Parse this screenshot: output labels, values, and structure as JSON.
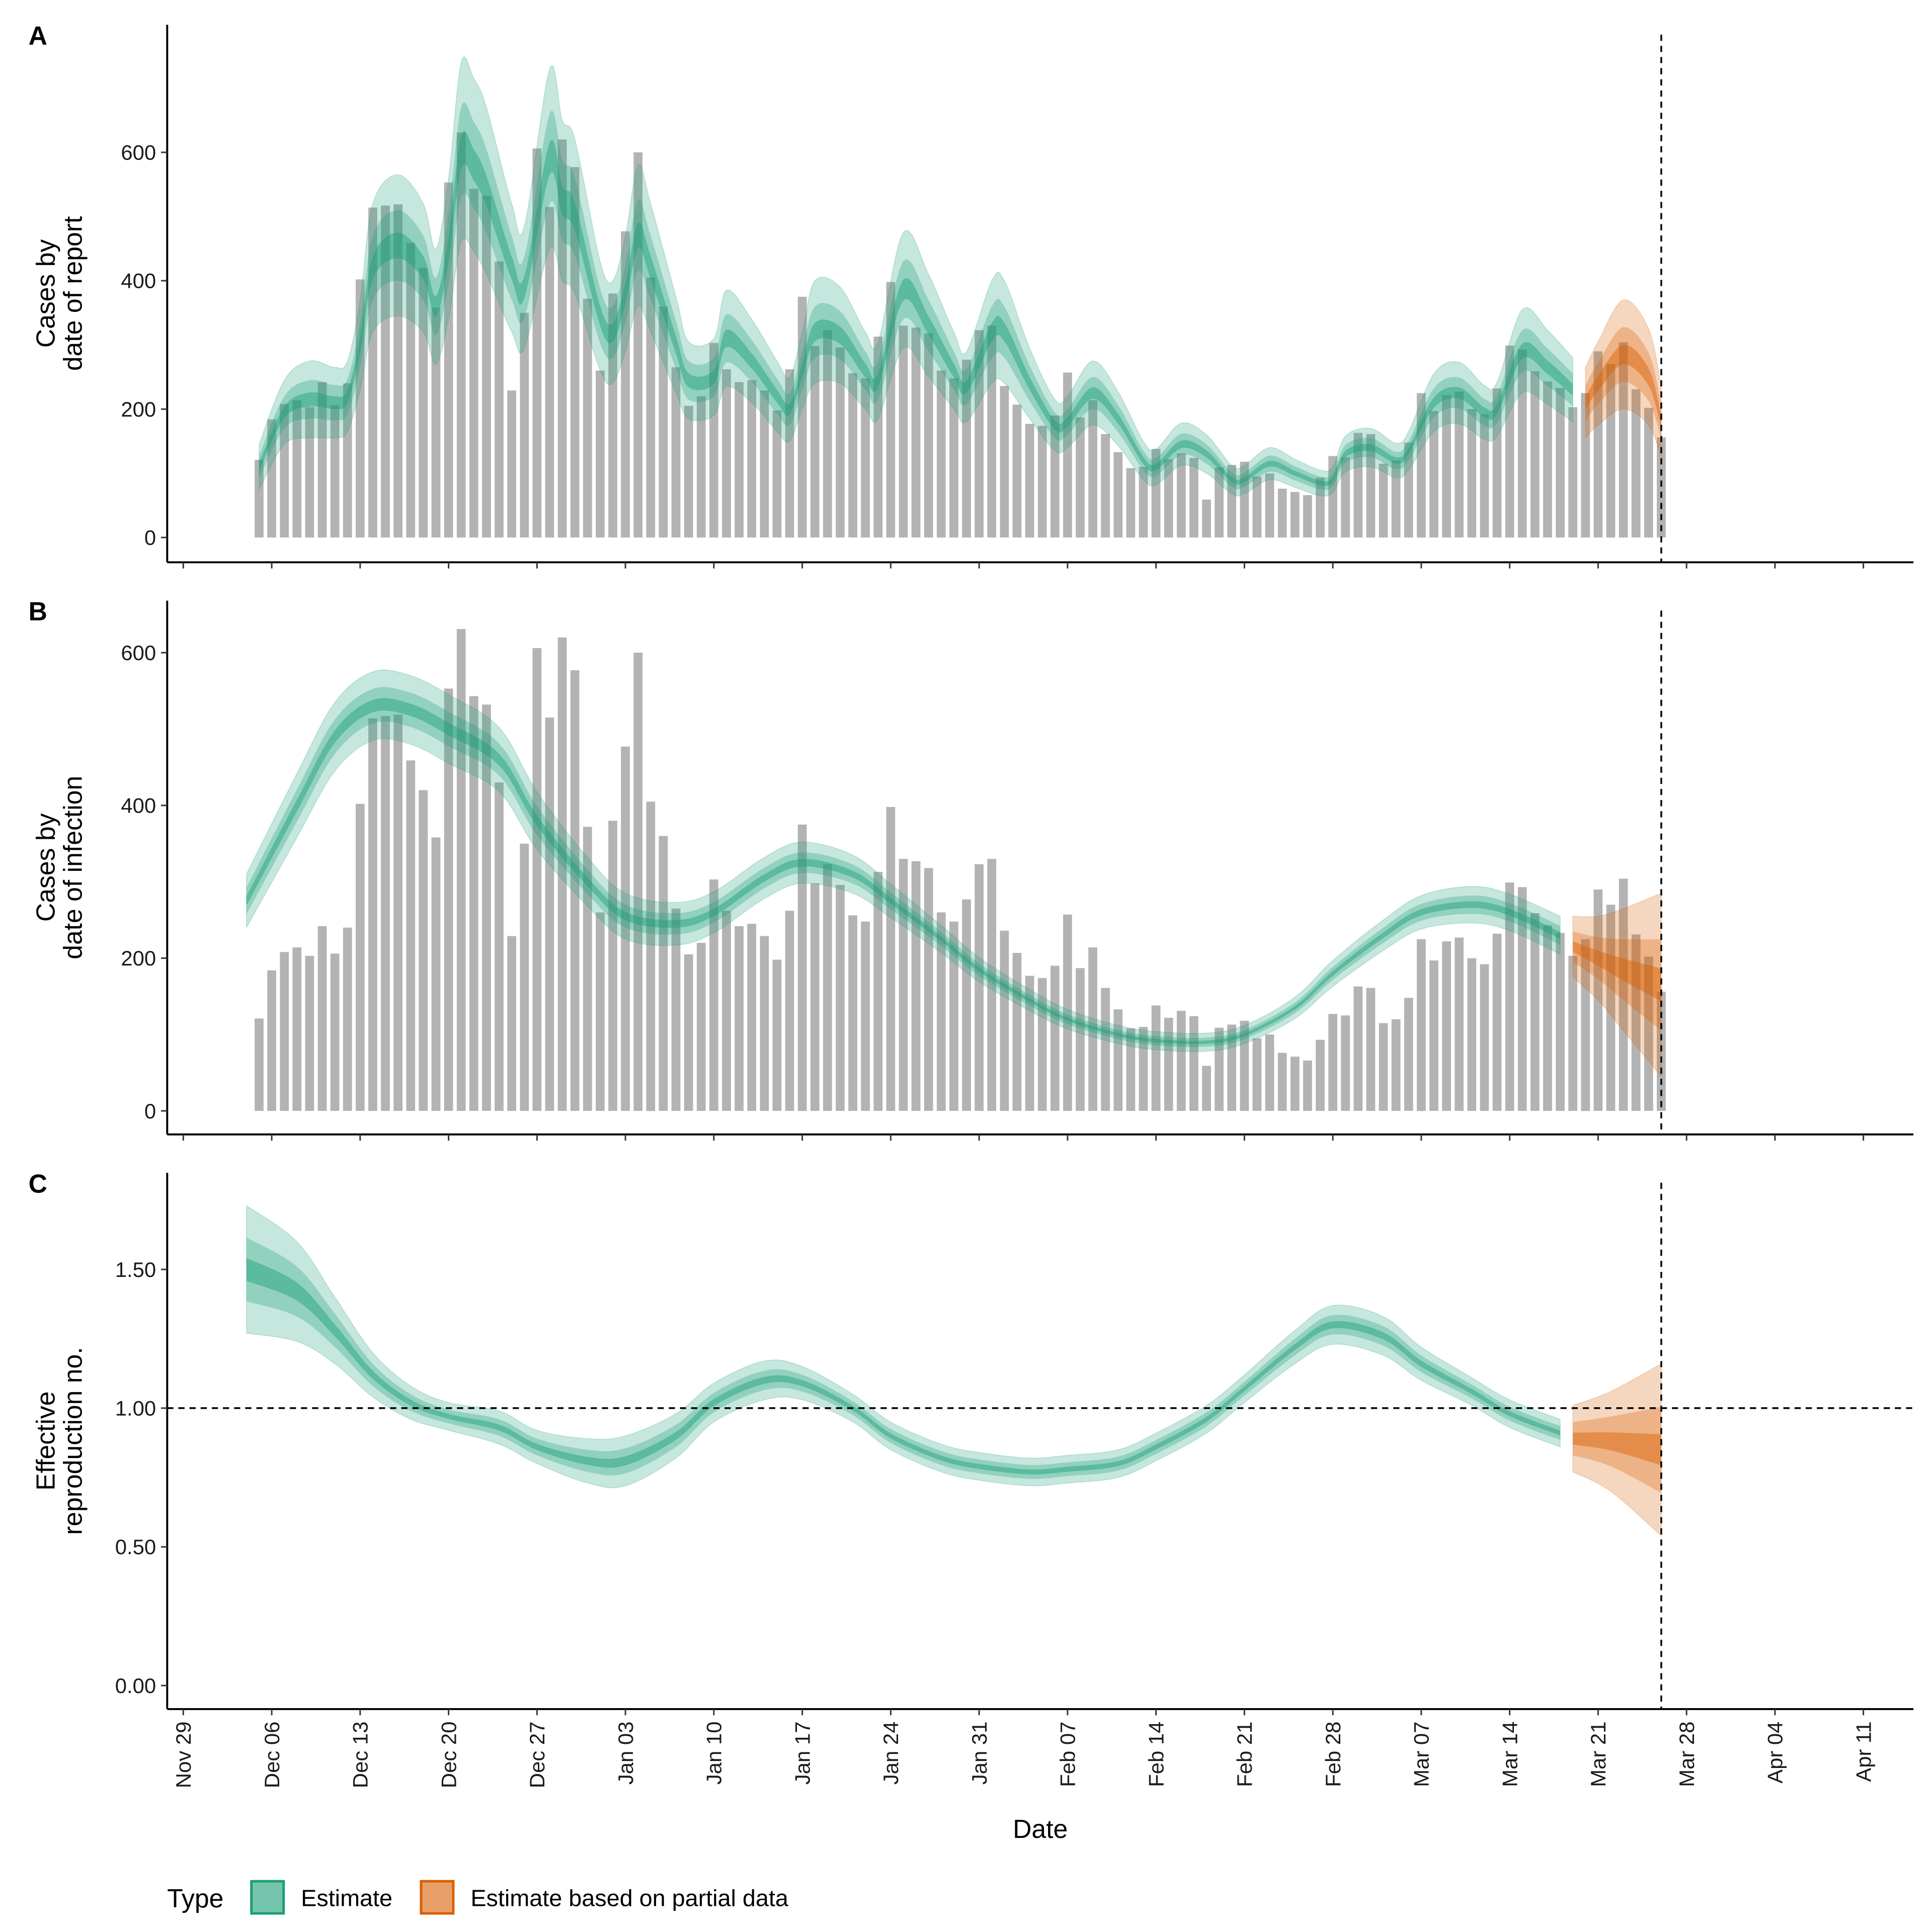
{
  "chart_data": [
    {
      "panel": "A",
      "type": "bar",
      "ylabel_lines": [
        "Cases by",
        "date of report"
      ],
      "ylim": [
        0,
        790
      ],
      "yticks": [
        0,
        200,
        400,
        600
      ],
      "bars": {
        "start_date": "Dec 05",
        "values": [
          121,
          184,
          208,
          214,
          203,
          242,
          206,
          240,
          402,
          514,
          517,
          519,
          459,
          420,
          358,
          553,
          631,
          543,
          532,
          430,
          229,
          350,
          606,
          515,
          620,
          577,
          372,
          260,
          380,
          477,
          600,
          405,
          360,
          265,
          205,
          220,
          303,
          262,
          242,
          245,
          229,
          198,
          262,
          375,
          298,
          323,
          296,
          256,
          248,
          313,
          398,
          330,
          327,
          318,
          260,
          248,
          277,
          323,
          330,
          236,
          207,
          177,
          174,
          190,
          257,
          187,
          214,
          161,
          133,
          108,
          110,
          138,
          122,
          131,
          124,
          59,
          109,
          113,
          118,
          95,
          100,
          76,
          71,
          66,
          93,
          127,
          125,
          163,
          161,
          115,
          120,
          148,
          225,
          197,
          222,
          227,
          200,
          192,
          232,
          299,
          293,
          259,
          243,
          233,
          203,
          225,
          290,
          270,
          304,
          231,
          202,
          156
        ]
      },
      "series": [
        {
          "name": "Estimate",
          "points": [
            [
              "Dec 05",
              110,
              35
            ],
            [
              "Dec 07",
              195,
              50
            ],
            [
              "Dec 09",
              215,
              60
            ],
            [
              "Dec 11",
              210,
              55
            ],
            [
              "Dec 12",
              220,
              55
            ],
            [
              "Dec 13",
              300,
              70
            ],
            [
              "Dec 14",
              420,
              100
            ],
            [
              "Dec 16",
              455,
              110
            ],
            [
              "Dec 18",
              420,
              100
            ],
            [
              "Dec 19",
              360,
              90
            ],
            [
              "Dec 20",
              450,
              110
            ],
            [
              "Dec 21",
              600,
              140
            ],
            [
              "Dec 22",
              580,
              135
            ],
            [
              "Dec 23",
              540,
              130
            ],
            [
              "Dec 25",
              420,
              100
            ],
            [
              "Dec 26",
              390,
              95
            ],
            [
              "Dec 28",
              590,
              140
            ],
            [
              "Dec 29",
              525,
              125
            ],
            [
              "Dec 30",
              500,
              120
            ],
            [
              "Jan 01",
              345,
              85
            ],
            [
              "Jan 02",
              320,
              80
            ],
            [
              "Jan 03",
              380,
              90
            ],
            [
              "Jan 04",
              470,
              110
            ],
            [
              "Jan 05",
              420,
              100
            ],
            [
              "Jan 07",
              300,
              75
            ],
            [
              "Jan 08",
              245,
              60
            ],
            [
              "Jan 10",
              250,
              60
            ],
            [
              "Jan 11",
              310,
              75
            ],
            [
              "Jan 13",
              275,
              65
            ],
            [
              "Jan 15",
              220,
              55
            ],
            [
              "Jan 16",
              200,
              50
            ],
            [
              "Jan 17",
              260,
              60
            ],
            [
              "Jan 18",
              320,
              80
            ],
            [
              "Jan 20",
              315,
              75
            ],
            [
              "Jan 22",
              260,
              60
            ],
            [
              "Jan 23",
              245,
              60
            ],
            [
              "Jan 25",
              385,
              90
            ],
            [
              "Jan 27",
              330,
              80
            ],
            [
              "Jan 29",
              260,
              60
            ],
            [
              "Jan 30",
              235,
              55
            ],
            [
              "Feb 01",
              320,
              80
            ],
            [
              "Feb 02",
              320,
              80
            ],
            [
              "Feb 04",
              240,
              55
            ],
            [
              "Feb 06",
              175,
              40
            ],
            [
              "Feb 07",
              180,
              40
            ],
            [
              "Feb 09",
              225,
              50
            ],
            [
              "Feb 11",
              185,
              42
            ],
            [
              "Feb 13",
              120,
              30
            ],
            [
              "Feb 14",
              110,
              28
            ],
            [
              "Feb 16",
              145,
              33
            ],
            [
              "Feb 18",
              130,
              30
            ],
            [
              "Feb 20",
              90,
              22
            ],
            [
              "Feb 21",
              90,
              22
            ],
            [
              "Feb 23",
              115,
              25
            ],
            [
              "Feb 25",
              100,
              22
            ],
            [
              "Feb 27",
              85,
              20
            ],
            [
              "Feb 28",
              90,
              20
            ],
            [
              "Mar 01",
              130,
              28
            ],
            [
              "Mar 03",
              140,
              30
            ],
            [
              "Mar 05",
              120,
              27
            ],
            [
              "Mar 06",
              135,
              30
            ],
            [
              "Mar 08",
              210,
              45
            ],
            [
              "Mar 10",
              225,
              48
            ],
            [
              "Mar 12",
              195,
              42
            ],
            [
              "Mar 13",
              200,
              42
            ],
            [
              "Mar 15",
              290,
              65
            ],
            [
              "Mar 17",
              265,
              58
            ],
            [
              "Mar 19",
              230,
              50
            ]
          ]
        },
        {
          "name": "Estimate based on partial data",
          "points": [
            [
              "Mar 20",
              210,
              55
            ],
            [
              "Mar 21",
              240,
              65
            ],
            [
              "Mar 23",
              285,
              85
            ],
            [
              "Mar 25",
              250,
              75
            ],
            [
              "Mar 26",
              180,
              55
            ]
          ]
        }
      ]
    },
    {
      "panel": "B",
      "type": "bar",
      "ylabel_lines": [
        "Cases by",
        "date of infection"
      ],
      "ylim": [
        0,
        665
      ],
      "yticks": [
        0,
        200,
        400,
        600
      ],
      "bars_same_as": "A",
      "series": [
        {
          "name": "Estimate",
          "points": [
            [
              "Dec 04",
              275,
              35
            ],
            [
              "Dec 08",
              400,
              42
            ],
            [
              "Dec 11",
              490,
              45
            ],
            [
              "Dec 14",
              530,
              45
            ],
            [
              "Dec 17",
              525,
              45
            ],
            [
              "Dec 20",
              500,
              45
            ],
            [
              "Dec 24",
              460,
              42
            ],
            [
              "Dec 27",
              380,
              38
            ],
            [
              "Dec 31",
              300,
              32
            ],
            [
              "Jan 03",
              255,
              30
            ],
            [
              "Jan 07",
              245,
              28
            ],
            [
              "Jan 10",
              260,
              27
            ],
            [
              "Jan 14",
              305,
              27
            ],
            [
              "Jan 17",
              325,
              27
            ],
            [
              "Jan 21",
              310,
              25
            ],
            [
              "Jan 24",
              275,
              22
            ],
            [
              "Jan 28",
              225,
              18
            ],
            [
              "Jan 31",
              185,
              16
            ],
            [
              "Feb 04",
              145,
              14
            ],
            [
              "Feb 07",
              120,
              13
            ],
            [
              "Feb 11",
              100,
              12
            ],
            [
              "Feb 14",
              92,
              12
            ],
            [
              "Feb 18",
              90,
              12
            ],
            [
              "Feb 21",
              100,
              12
            ],
            [
              "Feb 25",
              135,
              14
            ],
            [
              "Feb 28",
              180,
              17
            ],
            [
              "Mar 04",
              230,
              20
            ],
            [
              "Mar 07",
              260,
              22
            ],
            [
              "Mar 11",
              270,
              24
            ],
            [
              "Mar 14",
              260,
              24
            ],
            [
              "Mar 18",
              230,
              25
            ]
          ]
        },
        {
          "name": "Estimate based on partial data",
          "points": [
            [
              "Mar 19",
              215,
              40
            ],
            [
              "Mar 21",
              200,
              55
            ],
            [
              "Mar 23",
              185,
              80
            ],
            [
              "Mar 26",
              165,
              120
            ]
          ]
        }
      ]
    },
    {
      "panel": "C",
      "type": "line",
      "ylabel_lines": [
        "Effective",
        "reproduction no."
      ],
      "ylim": [
        0,
        1.85
      ],
      "yticks": [
        "0.00",
        "0.50",
        "1.00",
        "1.50"
      ],
      "reference_line": 1.0,
      "series": [
        {
          "name": "Estimate",
          "points": [
            [
              "Dec 04",
              1.5,
              0.23
            ],
            [
              "Dec 08",
              1.42,
              0.18
            ],
            [
              "Dec 11",
              1.28,
              0.12
            ],
            [
              "Dec 14",
              1.12,
              0.08
            ],
            [
              "Dec 17",
              1.02,
              0.06
            ],
            [
              "Dec 20",
              0.97,
              0.05
            ],
            [
              "Dec 24",
              0.93,
              0.06
            ],
            [
              "Dec 27",
              0.86,
              0.06
            ],
            [
              "Dec 31",
              0.81,
              0.08
            ],
            [
              "Jan 03",
              0.81,
              0.09
            ],
            [
              "Jan 07",
              0.9,
              0.08
            ],
            [
              "Jan 10",
              1.02,
              0.07
            ],
            [
              "Jan 14",
              1.1,
              0.07
            ],
            [
              "Jan 17",
              1.09,
              0.06
            ],
            [
              "Jan 21",
              1.0,
              0.05
            ],
            [
              "Jan 24",
              0.9,
              0.05
            ],
            [
              "Jan 28",
              0.82,
              0.05
            ],
            [
              "Jan 31",
              0.79,
              0.05
            ],
            [
              "Feb 04",
              0.77,
              0.05
            ],
            [
              "Feb 07",
              0.78,
              0.05
            ],
            [
              "Feb 11",
              0.8,
              0.05
            ],
            [
              "Feb 14",
              0.86,
              0.05
            ],
            [
              "Feb 18",
              0.96,
              0.05
            ],
            [
              "Feb 21",
              1.07,
              0.05
            ],
            [
              "Feb 25",
              1.22,
              0.06
            ],
            [
              "Feb 28",
              1.3,
              0.07
            ],
            [
              "Mar 04",
              1.26,
              0.07
            ],
            [
              "Mar 07",
              1.16,
              0.06
            ],
            [
              "Mar 11",
              1.06,
              0.05
            ],
            [
              "Mar 14",
              0.98,
              0.05
            ],
            [
              "Mar 18",
              0.91,
              0.05
            ]
          ]
        },
        {
          "name": "Estimate based on partial data",
          "points": [
            [
              "Mar 19",
              0.89,
              0.12
            ],
            [
              "Mar 22",
              0.88,
              0.18
            ],
            [
              "Mar 26",
              0.85,
              0.31
            ]
          ]
        }
      ]
    }
  ],
  "x_axis": {
    "label": "Date",
    "ticks": [
      "Nov 29",
      "Dec 06",
      "Dec 13",
      "Dec 20",
      "Dec 27",
      "Jan 03",
      "Jan 10",
      "Jan 17",
      "Jan 24",
      "Jan 31",
      "Feb 07",
      "Feb 14",
      "Feb 21",
      "Feb 28",
      "Mar 07",
      "Mar 14",
      "Mar 21",
      "Mar 28",
      "Apr 04",
      "Apr 11"
    ],
    "range": [
      "Nov 28",
      "Apr 14"
    ],
    "vline_date": "Mar 26"
  },
  "panel_letters": [
    "A",
    "B",
    "C"
  ],
  "legend": {
    "title": "Type",
    "position": "bottom-left",
    "items": [
      {
        "label": "Estimate",
        "fill": "#75c5ac",
        "stroke": "#1b9e77"
      },
      {
        "label": "Estimate based on partial data",
        "fill": "#e8a068",
        "stroke": "#d95f02"
      }
    ]
  },
  "colors": {
    "estimate": "#1b9e77",
    "partial": "#d95f02",
    "bars": "#b3b3b3"
  }
}
